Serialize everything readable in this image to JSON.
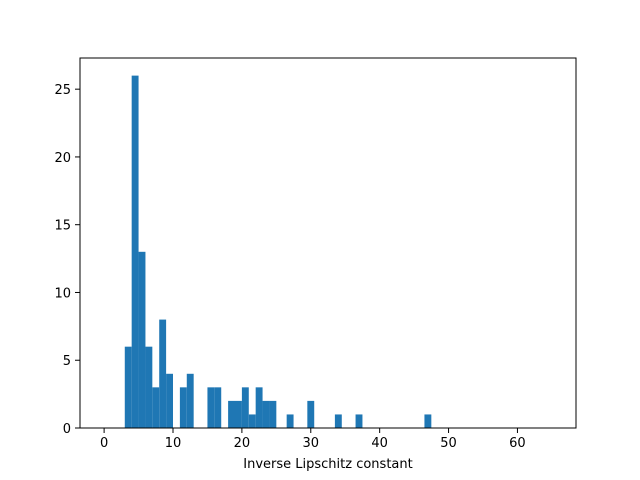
{
  "chart_data": {
    "type": "bar",
    "title": "",
    "xlabel": "Inverse Lipschitz constant",
    "ylabel": "",
    "xlim": [
      -3.5,
      68.5
    ],
    "ylim": [
      0,
      27.3
    ],
    "xticks": [
      0,
      10,
      20,
      30,
      40,
      50,
      60
    ],
    "yticks": [
      0,
      5,
      10,
      15,
      20,
      25
    ],
    "bar_color": "#1f77b4",
    "bin_width": 1.0,
    "bins": [
      {
        "x0": 3.0,
        "count": 6
      },
      {
        "x0": 4.0,
        "count": 26
      },
      {
        "x0": 5.0,
        "count": 13
      },
      {
        "x0": 6.0,
        "count": 6
      },
      {
        "x0": 7.0,
        "count": 3
      },
      {
        "x0": 8.0,
        "count": 8
      },
      {
        "x0": 9.0,
        "count": 4
      },
      {
        "x0": 11.0,
        "count": 3
      },
      {
        "x0": 12.0,
        "count": 4
      },
      {
        "x0": 15.0,
        "count": 3
      },
      {
        "x0": 16.0,
        "count": 3
      },
      {
        "x0": 18.0,
        "count": 2
      },
      {
        "x0": 19.0,
        "count": 2
      },
      {
        "x0": 20.0,
        "count": 3
      },
      {
        "x0": 21.0,
        "count": 1
      },
      {
        "x0": 22.0,
        "count": 3
      },
      {
        "x0": 23.0,
        "count": 2
      },
      {
        "x0": 24.0,
        "count": 2
      },
      {
        "x0": 26.5,
        "count": 1
      },
      {
        "x0": 29.5,
        "count": 2
      },
      {
        "x0": 33.5,
        "count": 1
      },
      {
        "x0": 36.5,
        "count": 1
      },
      {
        "x0": 46.5,
        "count": 1
      }
    ],
    "grid": false,
    "legend": "none"
  }
}
